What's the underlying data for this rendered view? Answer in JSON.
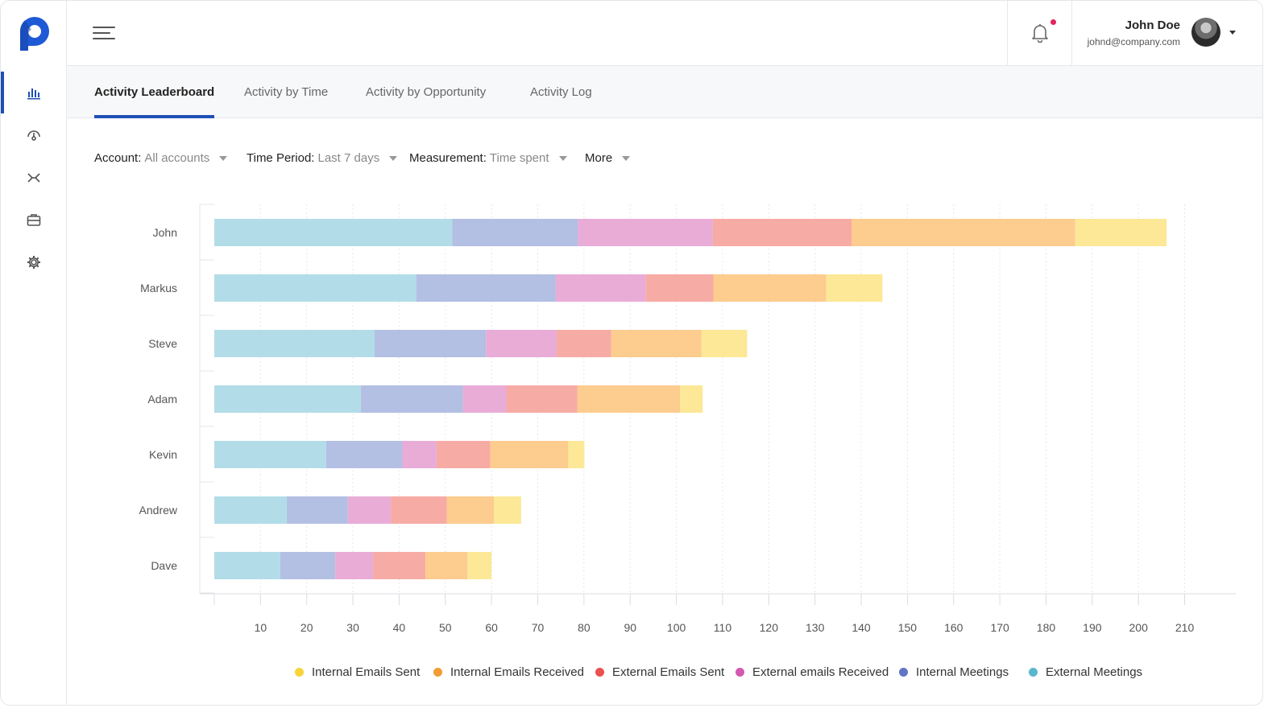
{
  "header": {
    "user_name": "John Doe",
    "user_email": "johnd@company.com"
  },
  "tabs": [
    {
      "label": "Activity Leaderboard",
      "active": true
    },
    {
      "label": "Activity by Time",
      "active": false
    },
    {
      "label": "Activity by Opportunity",
      "active": false
    },
    {
      "label": "Activity Log",
      "active": false
    }
  ],
  "filters": [
    {
      "label": "Account:",
      "value": "All accounts"
    },
    {
      "label": "Time Period:",
      "value": "Last 7 days"
    },
    {
      "label": "Measurement:",
      "value": "Time spent"
    },
    {
      "label": "More",
      "value": ""
    }
  ],
  "colors": {
    "accent": "#1f4fb4",
    "notification": "#e0245e"
  },
  "sidebar_icons": [
    "bar-chart-icon",
    "gauge-icon",
    "arrows-merge-icon",
    "briefcase-icon",
    "gear-icon"
  ],
  "chart_data": {
    "type": "bar",
    "orientation": "horizontal",
    "stacked": true,
    "categories": [
      "John",
      "Markus",
      "Steve",
      "Adam",
      "Kevin",
      "Andrew",
      "Dave"
    ],
    "series": [
      {
        "name": "External Meetings",
        "color": "#b2dde8",
        "values": [
          51.5,
          43.7,
          34.7,
          31.7,
          24.2,
          15.7,
          14.3
        ]
      },
      {
        "name": "Internal Meetings",
        "color": "#b3bfe3",
        "values": [
          27.2,
          30.2,
          24.1,
          22.1,
          16.5,
          13.2,
          11.9
        ]
      },
      {
        "name": "External emails Received",
        "color": "#e8acd7",
        "values": [
          29.2,
          19.5,
          15.3,
          9.4,
          7.4,
          9.3,
          8.2
        ]
      },
      {
        "name": "External Emails Sent",
        "color": "#f7aba5",
        "values": [
          30.0,
          14.6,
          11.8,
          15.4,
          11.6,
          12.1,
          11.3
        ]
      },
      {
        "name": "Internal Emails Received",
        "color": "#fdcc8f",
        "values": [
          48.4,
          24.4,
          19.5,
          22.2,
          16.9,
          10.2,
          9.1
        ]
      },
      {
        "name": "Internal Emails Sent",
        "color": "#fce896",
        "values": [
          19.8,
          12.2,
          9.9,
          4.9,
          3.5,
          5.9,
          5.2
        ]
      }
    ],
    "legend_colors": {
      "Internal Emails Sent": "#f8d43a",
      "Internal Emails Received": "#f39c33",
      "External Emails Sent": "#ea5050",
      "External emails Received": "#d35ab0",
      "Internal Meetings": "#6275c4",
      "External Meetings": "#5ab7cf"
    },
    "legend_order": [
      "Internal Emails Sent",
      "Internal Emails Received",
      "External Emails Sent",
      "External emails Received",
      "Internal Meetings",
      "External Meetings"
    ],
    "x_ticks": [
      10,
      20,
      30,
      40,
      50,
      60,
      70,
      80,
      90,
      100,
      110,
      120,
      130,
      140,
      150,
      160,
      170,
      180,
      190,
      200,
      210
    ],
    "xlim": [
      0,
      210
    ],
    "xlabel": "",
    "ylabel": "",
    "grid": true,
    "legend_position": "bottom"
  }
}
